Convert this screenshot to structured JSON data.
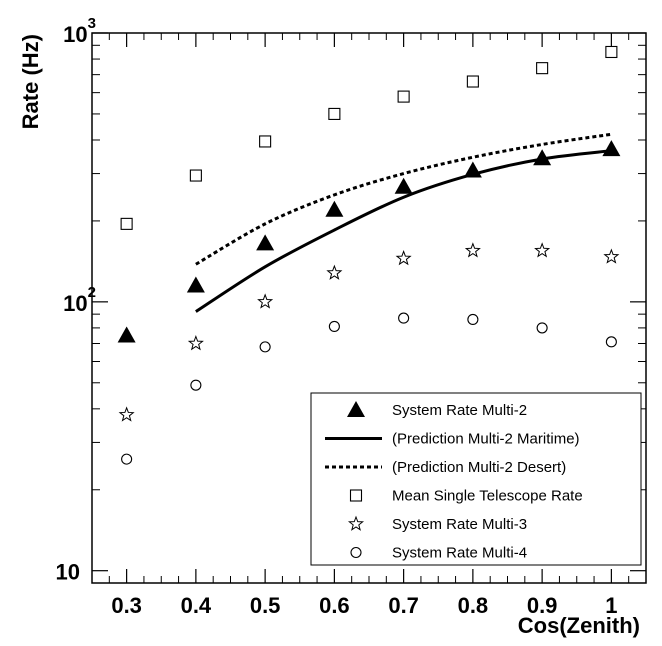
{
  "chart_data": {
    "type": "scatter",
    "xlabel": "Cos(Zenith)",
    "ylabel": "Rate (Hz)",
    "xlim": [
      0.25,
      1.05
    ],
    "ylim": [
      9,
      1000
    ],
    "y_scale": "log",
    "grid": false,
    "legend_position": "bottom-right",
    "x_ticks": [
      {
        "value": 0.3,
        "label": "0.3"
      },
      {
        "value": 0.4,
        "label": "0.4"
      },
      {
        "value": 0.5,
        "label": "0.5"
      },
      {
        "value": 0.6,
        "label": "0.6"
      },
      {
        "value": 0.7,
        "label": "0.7"
      },
      {
        "value": 0.8,
        "label": "0.8"
      },
      {
        "value": 0.9,
        "label": "0.9"
      },
      {
        "value": 1.0,
        "label": "1"
      }
    ],
    "y_ticks": [
      {
        "value": 10,
        "base": "10",
        "exp": ""
      },
      {
        "value": 100,
        "base": "10",
        "exp": "2"
      },
      {
        "value": 1000,
        "base": "10",
        "exp": "3"
      }
    ],
    "series": [
      {
        "name": "System Rate Multi-2",
        "kind": "markers",
        "marker": "filled-triangle",
        "x": [
          0.3,
          0.4,
          0.5,
          0.6,
          0.7,
          0.8,
          0.9,
          1.0
        ],
        "y": [
          75,
          115,
          165,
          220,
          268,
          308,
          342,
          370
        ]
      },
      {
        "name": "(Prediction Multi-2 Maritime)",
        "kind": "line",
        "style": "solid",
        "x": [
          0.4,
          0.5,
          0.6,
          0.7,
          0.8,
          0.9,
          1.0
        ],
        "y": [
          92,
          135,
          185,
          245,
          298,
          340,
          365
        ]
      },
      {
        "name": "(Prediction Multi-2 Desert)",
        "kind": "line",
        "style": "dotted",
        "x": [
          0.4,
          0.5,
          0.6,
          0.7,
          0.8,
          0.9,
          1.0
        ],
        "y": [
          138,
          195,
          250,
          300,
          345,
          385,
          420
        ]
      },
      {
        "name": "Mean Single Telescope Rate",
        "kind": "markers",
        "marker": "open-square",
        "x": [
          0.3,
          0.4,
          0.5,
          0.6,
          0.7,
          0.8,
          0.9,
          1.0
        ],
        "y": [
          195,
          295,
          395,
          500,
          580,
          660,
          740,
          850
        ]
      },
      {
        "name": "System Rate Multi-3",
        "kind": "markers",
        "marker": "open-star",
        "x": [
          0.3,
          0.4,
          0.5,
          0.6,
          0.7,
          0.8,
          0.9,
          1.0
        ],
        "y": [
          38,
          70,
          100,
          128,
          145,
          155,
          155,
          147
        ]
      },
      {
        "name": "System Rate Multi-4",
        "kind": "markers",
        "marker": "open-circle",
        "x": [
          0.3,
          0.4,
          0.5,
          0.6,
          0.7,
          0.8,
          0.9,
          1.0
        ],
        "y": [
          26,
          49,
          68,
          81,
          87,
          86,
          80,
          71
        ]
      }
    ]
  }
}
